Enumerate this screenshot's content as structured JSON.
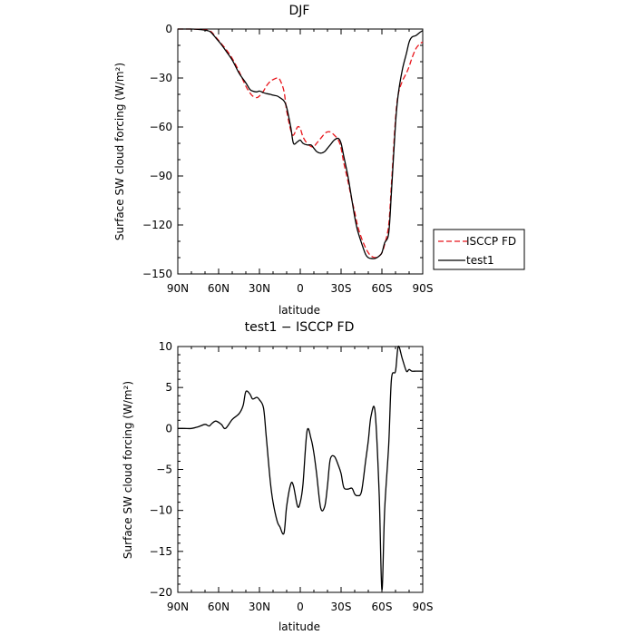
{
  "chart_data": [
    {
      "type": "line",
      "title": "DJF",
      "xlabel": "latitude",
      "ylabel": "Surface SW cloud forcing (W/m²)",
      "xlim": [
        90,
        -90
      ],
      "ylim": [
        -150,
        0
      ],
      "x_ticks": [
        90,
        60,
        30,
        0,
        -30,
        -60,
        -90
      ],
      "x_tick_labels": [
        "90N",
        "60N",
        "30N",
        "0",
        "30S",
        "60S",
        "90S"
      ],
      "y_ticks": [
        0,
        -30,
        -60,
        -90,
        -120,
        -150
      ],
      "y_tick_labels": [
        "0",
        "−30",
        "−60",
        "−90",
        "−120",
        "−150"
      ],
      "legend_position": "right-outside",
      "series": [
        {
          "name": "ISCCP FD",
          "color": "#e8151b",
          "dash": "dashed",
          "x": [
            90,
            85,
            80,
            75,
            70,
            67,
            65,
            62,
            58,
            55,
            50,
            45,
            40,
            37,
            35,
            32,
            30,
            27,
            25,
            22,
            20,
            17,
            15,
            12,
            10,
            7,
            5,
            2,
            0,
            -2,
            -5,
            -8,
            -10,
            -12,
            -15,
            -18,
            -20,
            -22,
            -25,
            -28,
            -30,
            -32,
            -35,
            -38,
            -40,
            -42,
            -45,
            -48,
            -50,
            -52,
            -55,
            -58,
            -60,
            -62,
            -65,
            -67,
            -70,
            -72,
            -75,
            -78,
            -80,
            -82,
            -85,
            -88,
            -90
          ],
          "y": [
            0,
            0,
            0,
            -0.2,
            -0.5,
            -1,
            -2,
            -5,
            -9,
            -12,
            -18,
            -26,
            -35,
            -39,
            -41,
            -42,
            -41,
            -38,
            -35,
            -32,
            -31,
            -30,
            -31,
            -38,
            -50,
            -62,
            -65,
            -60,
            -61,
            -66,
            -70,
            -72,
            -72,
            -70,
            -67,
            -64,
            -63,
            -63,
            -65,
            -68,
            -73,
            -82,
            -93,
            -105,
            -112,
            -120,
            -128,
            -134,
            -137,
            -139,
            -140,
            -139,
            -137,
            -132,
            -120,
            -95,
            -55,
            -40,
            -32,
            -27,
            -23,
            -18,
            -12,
            -9,
            -8
          ]
        },
        {
          "name": "test1",
          "color": "#000000",
          "dash": "solid",
          "x": [
            90,
            85,
            80,
            75,
            70,
            67,
            65,
            62,
            58,
            55,
            50,
            45,
            40,
            37,
            35,
            32,
            30,
            27,
            25,
            22,
            20,
            17,
            15,
            12,
            10,
            7,
            5,
            2,
            0,
            -2,
            -5,
            -8,
            -10,
            -12,
            -15,
            -18,
            -20,
            -22,
            -25,
            -28,
            -30,
            -32,
            -35,
            -38,
            -40,
            -42,
            -45,
            -48,
            -50,
            -52,
            -55,
            -58,
            -60,
            -62,
            -65,
            -67,
            -70,
            -72,
            -75,
            -78,
            -80,
            -82,
            -85,
            -88,
            -90
          ],
          "y": [
            0,
            0,
            0,
            -0.2,
            -0.7,
            -1.3,
            -2.5,
            -5.5,
            -9.5,
            -13,
            -19,
            -27,
            -33,
            -37,
            -38,
            -38.5,
            -38,
            -39,
            -39.5,
            -40,
            -40.5,
            -41,
            -42,
            -44,
            -48,
            -60,
            -70,
            -69,
            -68,
            -70,
            -71,
            -71,
            -73,
            -75,
            -76,
            -75,
            -73,
            -71,
            -68,
            -67,
            -70,
            -78,
            -90,
            -105,
            -115,
            -123,
            -131,
            -138,
            -140,
            -140.5,
            -140.5,
            -139,
            -137,
            -131,
            -125,
            -100,
            -58,
            -40,
            -25,
            -15,
            -8,
            -5,
            -4,
            -2,
            -1
          ]
        }
      ]
    },
    {
      "type": "line",
      "title": "test1 − ISCCP FD",
      "xlabel": "latitude",
      "ylabel": "Surface SW cloud forcing (W/m²)",
      "xlim": [
        90,
        -90
      ],
      "ylim": [
        -20,
        10
      ],
      "x_ticks": [
        90,
        60,
        30,
        0,
        -30,
        -60,
        -90
      ],
      "x_tick_labels": [
        "90N",
        "60N",
        "30N",
        "0",
        "30S",
        "60S",
        "90S"
      ],
      "y_ticks": [
        10,
        5,
        0,
        -5,
        -10,
        -15,
        -20
      ],
      "y_tick_labels": [
        "10",
        "5",
        "0",
        "−5",
        "−10",
        "−15",
        "−20"
      ],
      "series": [
        {
          "color": "#000000",
          "dash": "solid",
          "x": [
            90,
            85,
            80,
            75,
            70,
            67,
            65,
            62,
            58,
            55,
            50,
            45,
            42,
            40,
            37,
            35,
            32,
            30,
            27,
            25,
            22,
            20,
            17,
            15,
            12,
            10,
            7,
            5,
            2,
            0,
            -2,
            -5,
            -8,
            -10,
            -12,
            -15,
            -18,
            -20,
            -22,
            -25,
            -28,
            -30,
            -32,
            -35,
            -38,
            -40,
            -42,
            -45,
            -48,
            -50,
            -52,
            -55,
            -58,
            -60,
            -62,
            -65,
            -67,
            -70,
            -72,
            -75,
            -78,
            -80,
            -82,
            -85,
            -88,
            -90
          ],
          "y": [
            0,
            0,
            0,
            0.2,
            0.5,
            0.3,
            0.6,
            0.9,
            0.5,
            0,
            1.1,
            1.8,
            2.8,
            4.5,
            4.2,
            3.6,
            3.8,
            3.5,
            2.5,
            -1,
            -6.5,
            -9,
            -11.3,
            -12,
            -12.8,
            -9.5,
            -6.8,
            -7,
            -9.5,
            -9,
            -6.8,
            -0.3,
            -1.3,
            -3,
            -5.5,
            -9.7,
            -9.5,
            -7,
            -3.8,
            -3.4,
            -4.5,
            -5.5,
            -7.2,
            -7.4,
            -7.3,
            -8,
            -8.2,
            -7.7,
            -4,
            -1.5,
            1.5,
            2,
            -8,
            -19.7,
            -10,
            -2,
            6,
            7,
            10,
            8.5,
            7,
            7.2,
            7,
            7,
            7,
            7
          ]
        }
      ]
    }
  ]
}
